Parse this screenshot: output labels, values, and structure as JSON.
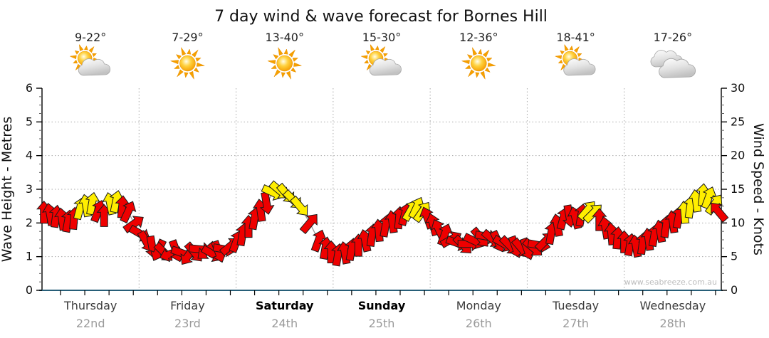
{
  "title": "7 day wind & wave forecast for Bornes Hill",
  "watermark": "www.seabreeze.com.au",
  "colors": {
    "arrow_red": "#ee0000",
    "arrow_yellow": "#ffee00",
    "arrow_outline": "#1a1a1a",
    "trend_line": "#9a9a9a",
    "bottom_axis": "#275e78",
    "grid": "#aaaaaa",
    "axis": "#000000"
  },
  "left_axis": {
    "label": "Wave Height - Metres",
    "ticks": [
      0,
      1,
      2,
      3,
      4,
      5,
      6
    ],
    "max": 6
  },
  "right_axis": {
    "label": "Wind Speed - Knots",
    "ticks": [
      0,
      5,
      10,
      15,
      20,
      25,
      30
    ],
    "max": 30
  },
  "days": [
    {
      "name": "Thursday",
      "date": "22nd",
      "temp": "9-22°",
      "icon": "sun-cloud",
      "bold": false
    },
    {
      "name": "Friday",
      "date": "23rd",
      "temp": "7-29°",
      "icon": "sun",
      "bold": false
    },
    {
      "name": "Saturday",
      "date": "24th",
      "temp": "13-40°",
      "icon": "sun",
      "bold": true
    },
    {
      "name": "Sunday",
      "date": "25th",
      "temp": "15-30°",
      "icon": "sun-cloud",
      "bold": true
    },
    {
      "name": "Monday",
      "date": "26th",
      "temp": "12-36°",
      "icon": "sun",
      "bold": false
    },
    {
      "name": "Tuesday",
      "date": "27th",
      "temp": "18-41°",
      "icon": "sun-cloud",
      "bold": false
    },
    {
      "name": "Wednesday",
      "date": "28th",
      "temp": "17-26°",
      "icon": "clouds",
      "bold": false
    }
  ],
  "chart_data": {
    "type": "wind-arrows",
    "title": "7 day wind & wave forecast for Bornes Hill",
    "x_axis": "time, 7 days (x in day units 0-7)",
    "y_axis_left": "Wave Height - Metres, range 0-6",
    "y_axis_right": "Wind Speed - Knots, range 0-30",
    "arrow_format": [
      "x_day_units",
      "wind_speed_knots",
      "direction_deg_0_is_up",
      "color r=red y=yellow"
    ],
    "arrows": [
      [
        0.02,
        11.6,
        0,
        "r"
      ],
      [
        0.082,
        11.3,
        -10,
        "r"
      ],
      [
        0.144,
        11.0,
        8,
        "r"
      ],
      [
        0.206,
        10.6,
        -8,
        "r"
      ],
      [
        0.268,
        10.3,
        10,
        "r"
      ],
      [
        0.33,
        10.7,
        5,
        "r"
      ],
      [
        0.392,
        12.2,
        15,
        "y"
      ],
      [
        0.454,
        12.6,
        -10,
        "y"
      ],
      [
        0.516,
        12.9,
        10,
        "y"
      ],
      [
        0.578,
        11.8,
        20,
        "r"
      ],
      [
        0.64,
        11.1,
        0,
        "r"
      ],
      [
        0.702,
        12.9,
        -12,
        "y"
      ],
      [
        0.764,
        13.2,
        12,
        "y"
      ],
      [
        0.826,
        12.4,
        5,
        "r"
      ],
      [
        0.888,
        11.7,
        25,
        "r"
      ],
      [
        0.95,
        9.9,
        55,
        "r"
      ],
      [
        1.012,
        8.4,
        120,
        "r"
      ],
      [
        1.074,
        7.2,
        150,
        "r"
      ],
      [
        1.136,
        6.4,
        170,
        "r"
      ],
      [
        1.198,
        5.9,
        205,
        "r"
      ],
      [
        1.26,
        5.6,
        135,
        "r"
      ],
      [
        1.322,
        5.4,
        250,
        "r"
      ],
      [
        1.384,
        5.8,
        160,
        "r"
      ],
      [
        1.446,
        5.5,
        110,
        "r"
      ],
      [
        1.508,
        5.2,
        215,
        "r"
      ],
      [
        1.57,
        5.6,
        140,
        "r"
      ],
      [
        1.632,
        6.1,
        95,
        "r"
      ],
      [
        1.694,
        5.8,
        230,
        "r"
      ],
      [
        1.756,
        5.4,
        120,
        "r"
      ],
      [
        1.818,
        5.7,
        160,
        "r"
      ],
      [
        1.88,
        6.1,
        100,
        "r"
      ],
      [
        1.942,
        6.6,
        50,
        "r"
      ],
      [
        2.004,
        7.3,
        20,
        "r"
      ],
      [
        2.066,
        8.3,
        10,
        "r"
      ],
      [
        2.128,
        9.5,
        0,
        "r"
      ],
      [
        2.19,
        10.7,
        10,
        "r"
      ],
      [
        2.252,
        11.9,
        -8,
        "r"
      ],
      [
        2.314,
        12.9,
        170,
        "r"
      ],
      [
        2.38,
        14.5,
        115,
        "y"
      ],
      [
        2.45,
        14.8,
        130,
        "y"
      ],
      [
        2.52,
        14.3,
        140,
        "y"
      ],
      [
        2.59,
        13.4,
        135,
        "y"
      ],
      [
        2.66,
        12.4,
        140,
        "y"
      ],
      [
        2.76,
        10.0,
        40,
        "r"
      ],
      [
        2.85,
        7.4,
        20,
        "r"
      ],
      [
        2.92,
        6.3,
        10,
        "r"
      ],
      [
        2.98,
        5.7,
        0,
        "r"
      ],
      [
        3.05,
        5.3,
        10,
        "r"
      ],
      [
        3.12,
        5.6,
        -10,
        "r"
      ],
      [
        3.19,
        6.1,
        10,
        "r"
      ],
      [
        3.26,
        6.7,
        0,
        "r"
      ],
      [
        3.33,
        7.4,
        -12,
        "r"
      ],
      [
        3.4,
        8.2,
        8,
        "r"
      ],
      [
        3.47,
        8.9,
        -5,
        "r"
      ],
      [
        3.54,
        9.6,
        10,
        "r"
      ],
      [
        3.61,
        10.2,
        -8,
        "r"
      ],
      [
        3.68,
        10.8,
        5,
        "r"
      ],
      [
        3.74,
        11.3,
        15,
        "r"
      ],
      [
        3.8,
        11.9,
        30,
        "y"
      ],
      [
        3.86,
        12.3,
        25,
        "y"
      ],
      [
        3.92,
        11.7,
        35,
        "y"
      ],
      [
        3.97,
        10.8,
        -20,
        "r"
      ],
      [
        4.03,
        9.8,
        -15,
        "r"
      ],
      [
        4.09,
        9.0,
        -25,
        "r"
      ],
      [
        4.15,
        8.3,
        20,
        "r"
      ],
      [
        4.22,
        7.6,
        60,
        "r"
      ],
      [
        4.28,
        7.0,
        110,
        "r"
      ],
      [
        4.34,
        6.7,
        135,
        "r"
      ],
      [
        4.4,
        6.9,
        90,
        "r"
      ],
      [
        4.46,
        7.3,
        115,
        "r"
      ],
      [
        4.52,
        7.8,
        140,
        "r"
      ],
      [
        4.58,
        8.0,
        100,
        "r"
      ],
      [
        4.64,
        7.6,
        130,
        "r"
      ],
      [
        4.7,
        7.2,
        155,
        "r"
      ],
      [
        4.76,
        6.9,
        120,
        "r"
      ],
      [
        4.82,
        6.6,
        135,
        "r"
      ],
      [
        4.88,
        6.4,
        160,
        "r"
      ],
      [
        4.94,
        6.2,
        140,
        "r"
      ],
      [
        5.0,
        6.1,
        160,
        "r"
      ],
      [
        5.062,
        6.3,
        130,
        "r"
      ],
      [
        5.124,
        6.7,
        100,
        "r"
      ],
      [
        5.186,
        7.3,
        45,
        "r"
      ],
      [
        5.248,
        8.5,
        10,
        "r"
      ],
      [
        5.31,
        9.7,
        -10,
        "r"
      ],
      [
        5.372,
        10.7,
        15,
        "r"
      ],
      [
        5.434,
        11.0,
        170,
        "r"
      ],
      [
        5.496,
        10.8,
        -15,
        "r"
      ],
      [
        5.558,
        11.2,
        10,
        "r"
      ],
      [
        5.62,
        11.9,
        40,
        "y"
      ],
      [
        5.682,
        11.5,
        45,
        "y"
      ],
      [
        5.744,
        10.5,
        0,
        "r"
      ],
      [
        5.806,
        9.3,
        -10,
        "r"
      ],
      [
        5.868,
        8.4,
        -5,
        "r"
      ],
      [
        5.93,
        7.8,
        5,
        "r"
      ],
      [
        6.0,
        7.2,
        0,
        "r"
      ],
      [
        6.06,
        6.8,
        10,
        "r"
      ],
      [
        6.12,
        6.6,
        -10,
        "r"
      ],
      [
        6.19,
        7.0,
        8,
        "r"
      ],
      [
        6.25,
        7.6,
        -8,
        "r"
      ],
      [
        6.31,
        8.2,
        10,
        "r"
      ],
      [
        6.37,
        8.8,
        -10,
        "r"
      ],
      [
        6.43,
        9.5,
        8,
        "r"
      ],
      [
        6.5,
        10.2,
        -8,
        "r"
      ],
      [
        6.56,
        10.9,
        10,
        "r"
      ],
      [
        6.62,
        11.6,
        -5,
        "y"
      ],
      [
        6.68,
        12.4,
        8,
        "y"
      ],
      [
        6.74,
        13.3,
        -8,
        "y"
      ],
      [
        6.81,
        14.2,
        5,
        "y"
      ],
      [
        6.87,
        13.8,
        20,
        "y"
      ],
      [
        6.93,
        12.8,
        35,
        "y"
      ],
      [
        6.97,
        11.7,
        -40,
        "r"
      ]
    ]
  }
}
